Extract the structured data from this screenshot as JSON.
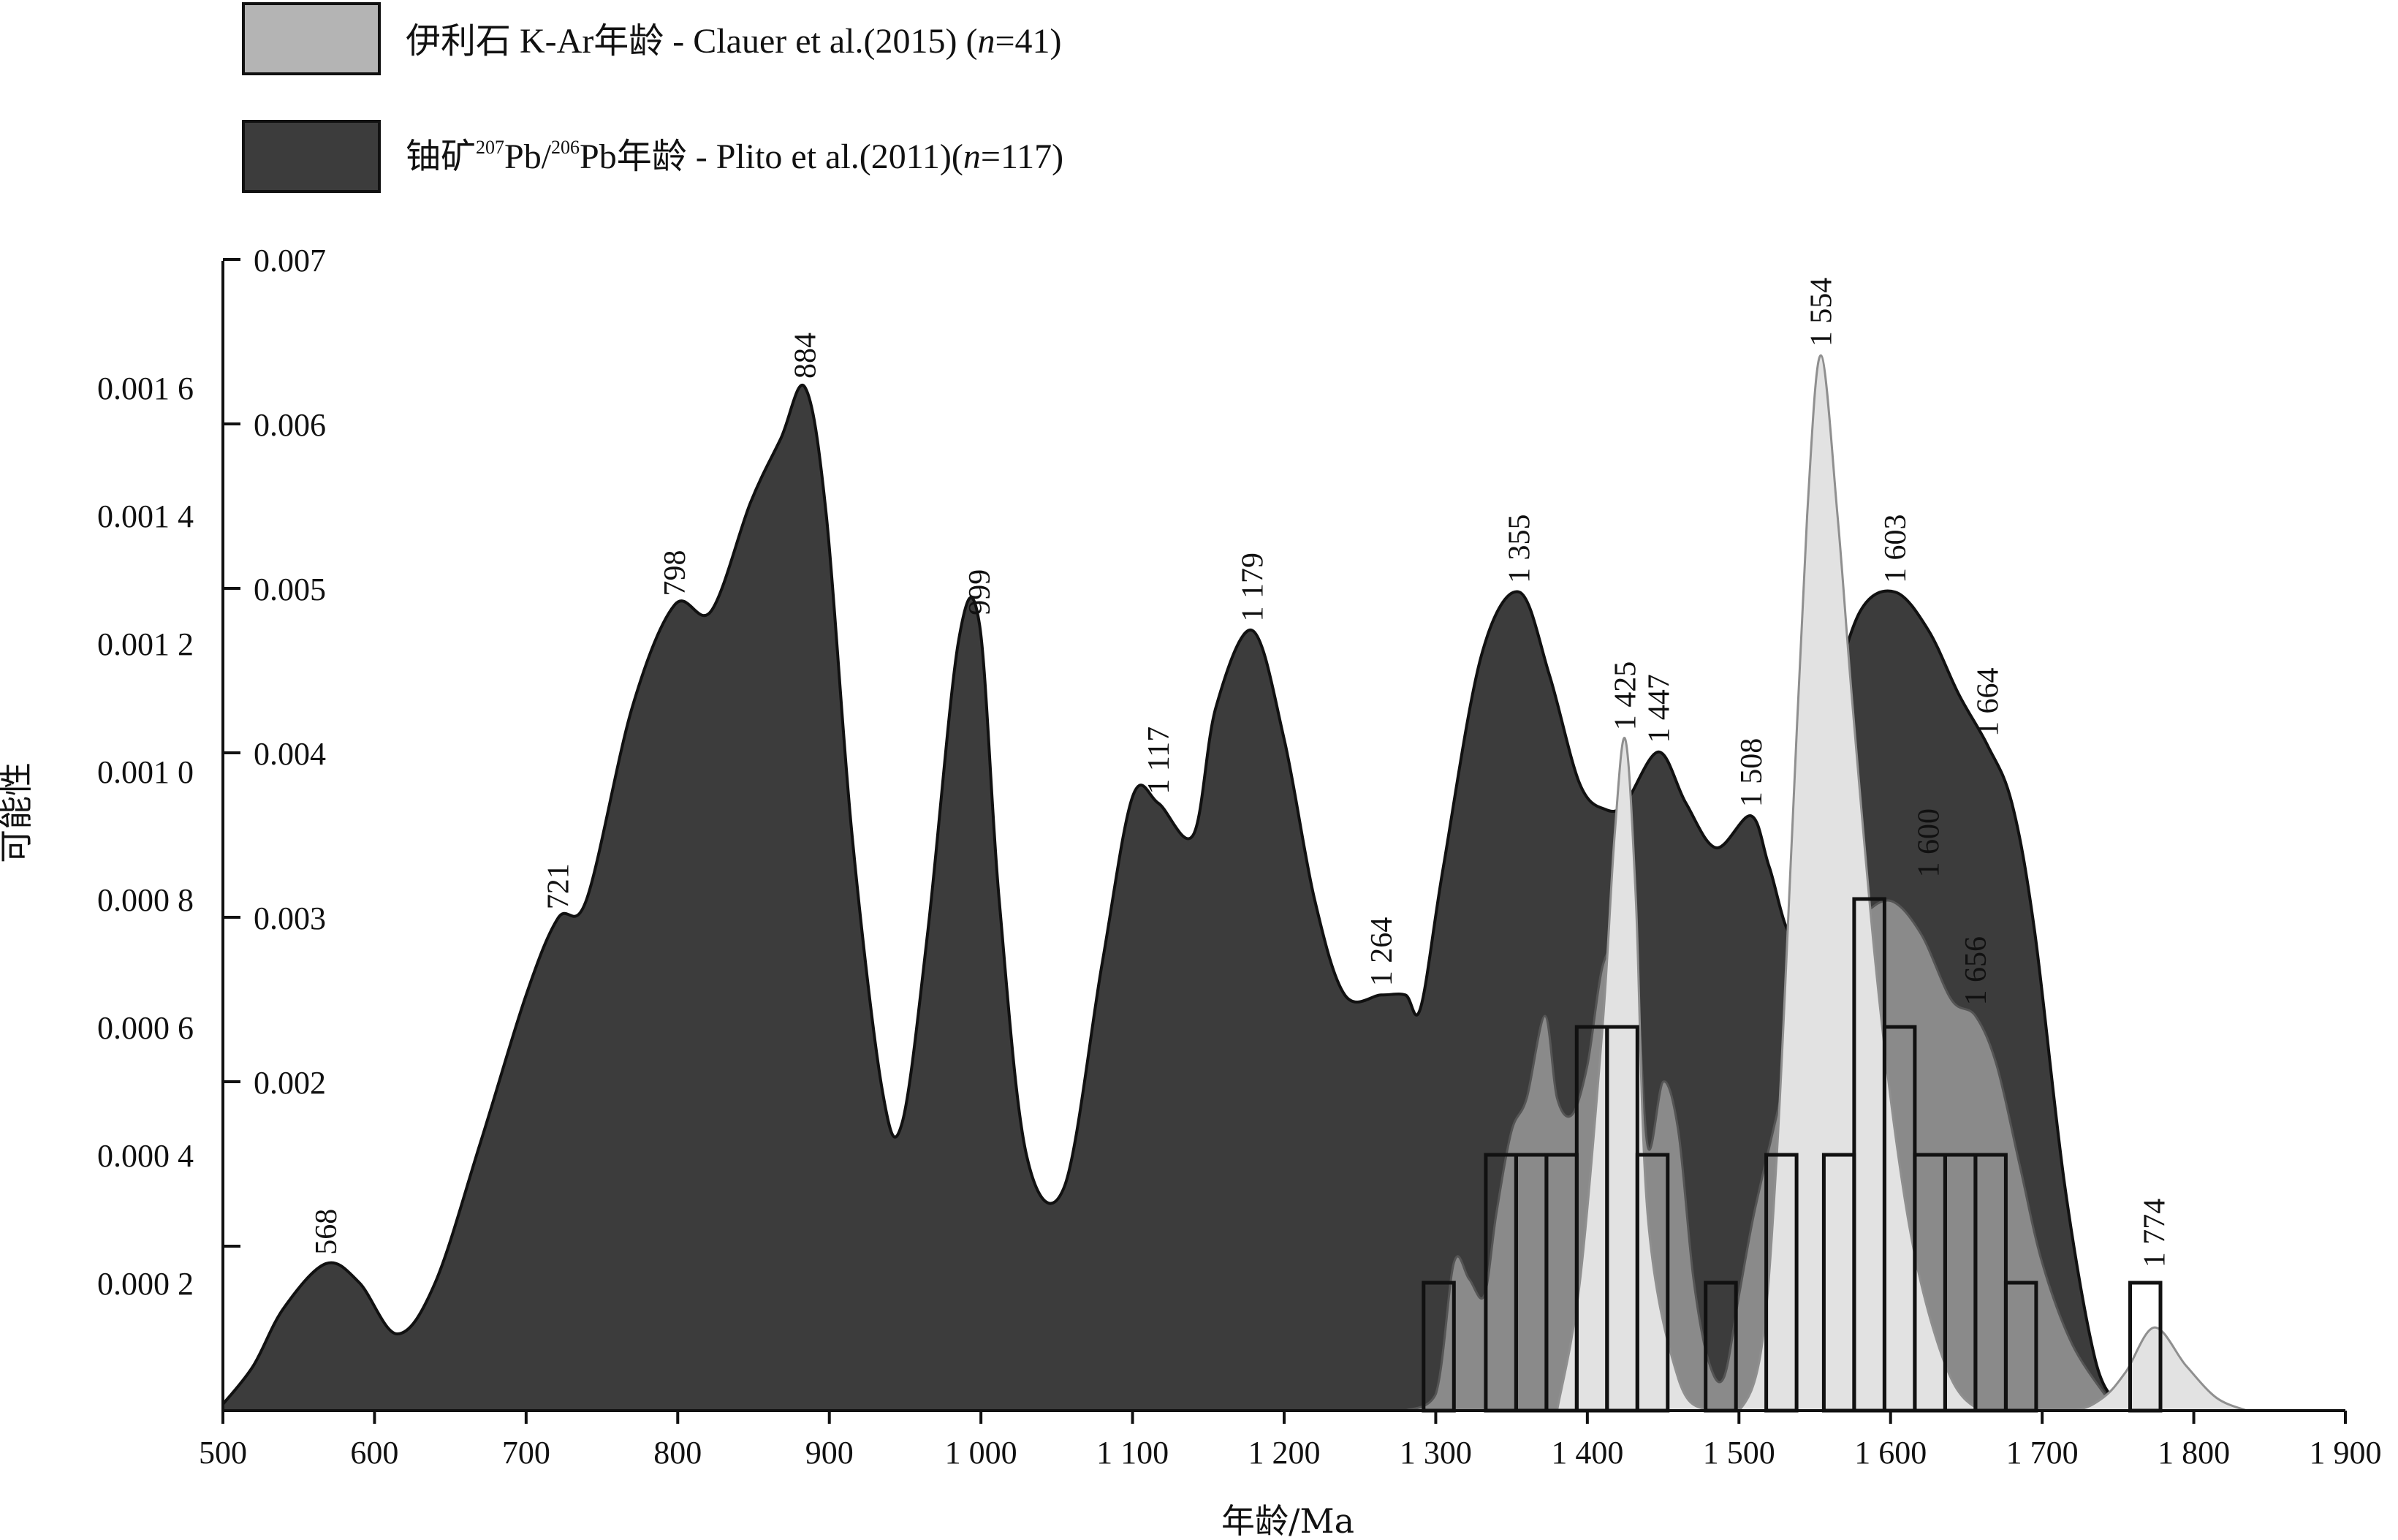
{
  "legend": {
    "items": [
      {
        "label": "伊利石 K-Ar年龄 - Clauer et al.(2015) (n=41)",
        "parts": [
          "伊利石 K-Ar年龄 - Clauer et al.(2015) (",
          "n",
          "=41)"
        ],
        "color": "#b4b4b4"
      },
      {
        "label": "铀矿207Pb/206Pb年龄 - Plito et al.(2011)(n=117)",
        "parts": [
          "铀矿",
          "207",
          "Pb/",
          "206",
          "Pb年龄 - Plito et al.(2011)(",
          "n",
          "=117)"
        ],
        "color": "#3c3c3c"
      }
    ]
  },
  "chart_data": {
    "type": "area",
    "xlabel": "年龄/Ma",
    "ylabel": "可能性",
    "xlim": [
      500,
      1900
    ],
    "x_ticks": [
      500,
      600,
      700,
      800,
      900,
      1000,
      1100,
      1200,
      1300,
      1400,
      1500,
      1600,
      1700,
      1800,
      1900
    ],
    "x_tick_labels": [
      "500",
      "600",
      "700",
      "800",
      "900",
      "1 000",
      "1 100",
      "1 200",
      "1 300",
      "1 400",
      "1 500",
      "1 600",
      "1 700",
      "1 800",
      "1 900"
    ],
    "y_left": {
      "lim": [
        0,
        0.0018
      ],
      "ticks": [
        0.0002,
        0.0004,
        0.0006,
        0.0008,
        0.001,
        0.0012,
        0.0014,
        0.0016
      ],
      "tick_labels": [
        "0.000 2",
        "0.000 4",
        "0.000 6",
        "0.000 8",
        "0.001 0",
        "0.001 2",
        "0.001 4",
        "0.001 6"
      ]
    },
    "y_right": {
      "lim": [
        0,
        0.007
      ],
      "ticks": [
        0.001,
        0.002,
        0.003,
        0.004,
        0.005,
        0.006,
        0.007
      ],
      "tick_labels": [
        "",
        "0.002",
        "0.003",
        "0.004",
        "0.005",
        "0.006",
        "0.007"
      ]
    },
    "series": [
      {
        "name": "铀矿207Pb/206Pb年龄 - Plito et al.(2011)(n=117)",
        "axis": "left",
        "color": "#3c3c3c",
        "x": [
          500,
          520,
          540,
          568,
          590,
          615,
          640,
          670,
          700,
          721,
          740,
          770,
          798,
          822,
          848,
          868,
          884,
          898,
          915,
          935,
          948,
          965,
          985,
          999,
          1012,
          1030,
          1055,
          1080,
          1100,
          1117,
          1140,
          1155,
          1179,
          1200,
          1220,
          1240,
          1264,
          1280,
          1290,
          1305,
          1330,
          1355,
          1375,
          1395,
          1412,
          1425,
          1447,
          1465,
          1485,
          1508,
          1520,
          1535,
          1545,
          1560,
          1580,
          1603,
          1625,
          1645,
          1664,
          1680,
          1695,
          1715,
          1735,
          1750
        ],
        "y": [
          1e-05,
          7e-05,
          0.00016,
          0.00023,
          0.0002,
          0.00012,
          0.0002,
          0.00042,
          0.00065,
          0.00077,
          0.0008,
          0.0011,
          0.00126,
          0.00125,
          0.00142,
          0.00152,
          0.0016,
          0.0014,
          0.0009,
          0.0005,
          0.00045,
          0.00075,
          0.0012,
          0.00123,
          0.0008,
          0.0004,
          0.00035,
          0.0007,
          0.00096,
          0.00095,
          0.0009,
          0.0011,
          0.00122,
          0.00105,
          0.0008,
          0.00065,
          0.00065,
          0.00065,
          0.00063,
          0.00085,
          0.00118,
          0.00128,
          0.00115,
          0.00098,
          0.00094,
          0.00095,
          0.00103,
          0.00095,
          0.00088,
          0.00093,
          0.00085,
          0.00075,
          0.00095,
          0.0011,
          0.00125,
          0.00128,
          0.00122,
          0.00112,
          0.00104,
          0.00095,
          0.00075,
          0.00035,
          8e-05,
          1e-05
        ]
      },
      {
        "name": "",
        "axis": "right",
        "color": "#8a8a8a",
        "x": [
          1280,
          1300,
          1312,
          1322,
          1332,
          1340,
          1350,
          1360,
          1372,
          1380,
          1390,
          1400,
          1410,
          1420,
          1432,
          1440,
          1450,
          1460,
          1470,
          1480,
          1490,
          1500,
          1510,
          1525,
          1540,
          1560,
          1580,
          1600,
          1620,
          1640,
          1656,
          1670,
          1685,
          1700,
          1720,
          1745
        ],
        "y": [
          0.0,
          0.0001,
          0.0009,
          0.0008,
          0.0007,
          0.0012,
          0.0017,
          0.0019,
          0.0024,
          0.0019,
          0.0018,
          0.0021,
          0.0027,
          0.0028,
          0.0026,
          0.0016,
          0.002,
          0.0017,
          0.0008,
          0.0003,
          0.0002,
          0.0007,
          0.0012,
          0.0018,
          0.0024,
          0.0028,
          0.003,
          0.0031,
          0.0029,
          0.0025,
          0.0024,
          0.0021,
          0.0015,
          0.0009,
          0.0004,
          5e-05
        ]
      },
      {
        "name": "伊利石 K-Ar年龄 - Clauer et al.(2015) (n=41)",
        "axis": "left",
        "color": "#e2e2e2",
        "x": [
          1380,
          1395,
          1410,
          1418,
          1425,
          1432,
          1440,
          1460,
          1480,
          1500,
          1515,
          1525,
          1535,
          1545,
          1554,
          1565,
          1575,
          1590,
          1605,
          1620,
          1640,
          1660,
          1680,
          1720,
          1740,
          1755,
          1774,
          1795,
          1815,
          1835
        ],
        "y": [
          0.0,
          0.0002,
          0.0006,
          0.0009,
          0.00105,
          0.0008,
          0.0003,
          5e-05,
          0.0,
          0.0,
          0.0001,
          0.0004,
          0.0009,
          0.0014,
          0.00165,
          0.0014,
          0.0011,
          0.0007,
          0.0004,
          0.0002,
          5e-05,
          0.0,
          0.0,
          0.0,
          2e-05,
          6e-05,
          0.00013,
          7e-05,
          2e-05,
          0.0
        ]
      }
    ],
    "histogram": {
      "axis": "left",
      "bin_width": 20,
      "bins": [
        {
          "x0": 1292,
          "value": 0.0002
        },
        {
          "x0": 1333,
          "value": 0.0004
        },
        {
          "x0": 1353,
          "value": 0.0004
        },
        {
          "x0": 1373,
          "value": 0.0004
        },
        {
          "x0": 1393,
          "value": 0.0006
        },
        {
          "x0": 1413,
          "value": 0.0006
        },
        {
          "x0": 1433,
          "value": 0.0004
        },
        {
          "x0": 1478,
          "value": 0.0002
        },
        {
          "x0": 1518,
          "value": 0.0004
        },
        {
          "x0": 1556,
          "value": 0.0004
        },
        {
          "x0": 1576,
          "value": 0.0008
        },
        {
          "x0": 1596,
          "value": 0.0006
        },
        {
          "x0": 1616,
          "value": 0.0004
        },
        {
          "x0": 1636,
          "value": 0.0004
        },
        {
          "x0": 1656,
          "value": 0.0004
        },
        {
          "x0": 1676,
          "value": 0.0002
        },
        {
          "x0": 1758,
          "value": 0.0002
        }
      ]
    },
    "peak_labels": [
      {
        "text": "568",
        "x": 568,
        "y": 0.00023,
        "axis": "left"
      },
      {
        "text": "721",
        "x": 721,
        "y": 0.00077,
        "axis": "left"
      },
      {
        "text": "798",
        "x": 798,
        "y": 0.00126,
        "axis": "left"
      },
      {
        "text": "884",
        "x": 884,
        "y": 0.0016,
        "axis": "left"
      },
      {
        "text": "999",
        "x": 999,
        "y": 0.00123,
        "axis": "left"
      },
      {
        "text": "1 117",
        "x": 1117,
        "y": 0.00095,
        "axis": "left"
      },
      {
        "text": "1 179",
        "x": 1179,
        "y": 0.00122,
        "axis": "left"
      },
      {
        "text": "1 264",
        "x": 1264,
        "y": 0.00065,
        "axis": "left"
      },
      {
        "text": "1 355",
        "x": 1355,
        "y": 0.00128,
        "axis": "left"
      },
      {
        "text": "1 425",
        "x": 1425,
        "y": 0.00105,
        "axis": "left"
      },
      {
        "text": "1 447",
        "x": 1447,
        "y": 0.00103,
        "axis": "left"
      },
      {
        "text": "1 508",
        "x": 1508,
        "y": 0.00093,
        "axis": "left"
      },
      {
        "text": "1 554",
        "x": 1554,
        "y": 0.00165,
        "axis": "left"
      },
      {
        "text": "1 603",
        "x": 1603,
        "y": 0.00128,
        "axis": "left"
      },
      {
        "text": "1 600",
        "x": 1625,
        "y": 0.00082,
        "axis": "left"
      },
      {
        "text": "1 664",
        "x": 1664,
        "y": 0.00104,
        "axis": "left"
      },
      {
        "text": "1 656",
        "x": 1656,
        "y": 0.00062,
        "axis": "left"
      },
      {
        "text": "1 774",
        "x": 1774,
        "y": 0.00021,
        "axis": "left"
      }
    ]
  }
}
